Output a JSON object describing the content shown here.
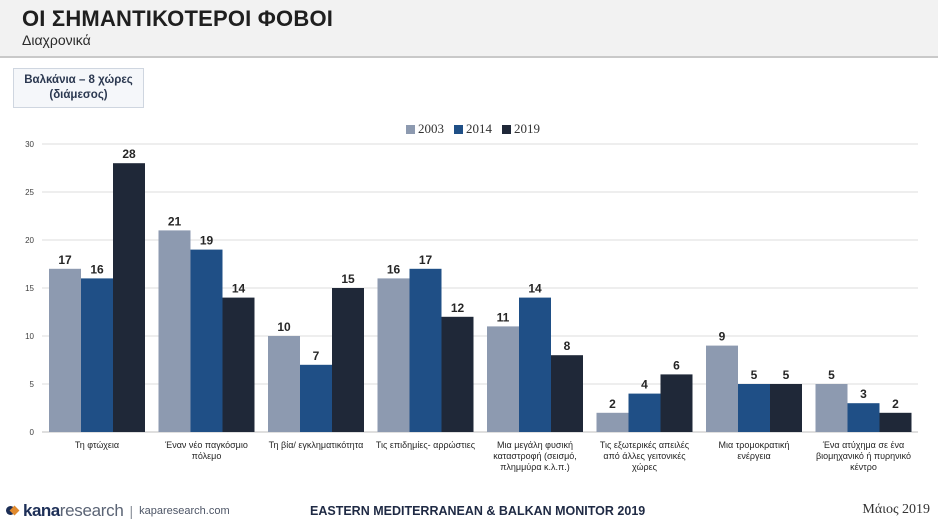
{
  "header": {
    "title": "ΟΙ ΣΗΜΑΝΤΙΚΟΤΕΡΟΙ ΦΟΒΟΙ",
    "subtitle": "Διαχρονικά"
  },
  "info_box": {
    "line1": "Βαλκάνια – 8 χώρες",
    "line2": "(διάμεσος)"
  },
  "chart_data": {
    "type": "bar",
    "ylim": [
      0,
      30
    ],
    "yticks": [
      0,
      5,
      10,
      15,
      20,
      25,
      30
    ],
    "grid": true,
    "legend_position": "top-center",
    "categories": [
      [
        "Τη φτώχεια"
      ],
      [
        "Έναν νέο παγκόσμιο",
        "πόλεμο"
      ],
      [
        "Τη βία/ εγκληματικότητα"
      ],
      [
        "Τις επιδημίες- αρρώστιες"
      ],
      [
        "Μια μεγάλη φυσική",
        "καταστροφή (σεισμό,",
        "πλημμύρα κ.λ.π.)"
      ],
      [
        "Τις εξωτερικές απειλές",
        "από άλλες γειτονικές",
        "χώρες"
      ],
      [
        "Μια τρομοκρατική",
        "ενέργεια"
      ],
      [
        "Ένα ατύχημα σε ένα",
        "βιομηχανικό ή πυρηνικό",
        "κέντρο"
      ]
    ],
    "series": [
      {
        "name": "2003",
        "color": "#8d9ab0",
        "values": [
          17,
          21,
          10,
          16,
          11,
          2,
          9,
          5
        ]
      },
      {
        "name": "2014",
        "color": "#1f4f86",
        "values": [
          16,
          19,
          7,
          17,
          14,
          4,
          5,
          3
        ]
      },
      {
        "name": "2019",
        "color": "#1f2838",
        "values": [
          28,
          14,
          15,
          12,
          8,
          6,
          5,
          2
        ]
      }
    ]
  },
  "footer": {
    "logo_kana": "kana",
    "logo_research": "research",
    "logo_site": "kaparesearch.com",
    "center": "EASTERN MEDITERRANEAN & BALKAN MONITOR 2019",
    "date": "Μάιος 2019"
  }
}
